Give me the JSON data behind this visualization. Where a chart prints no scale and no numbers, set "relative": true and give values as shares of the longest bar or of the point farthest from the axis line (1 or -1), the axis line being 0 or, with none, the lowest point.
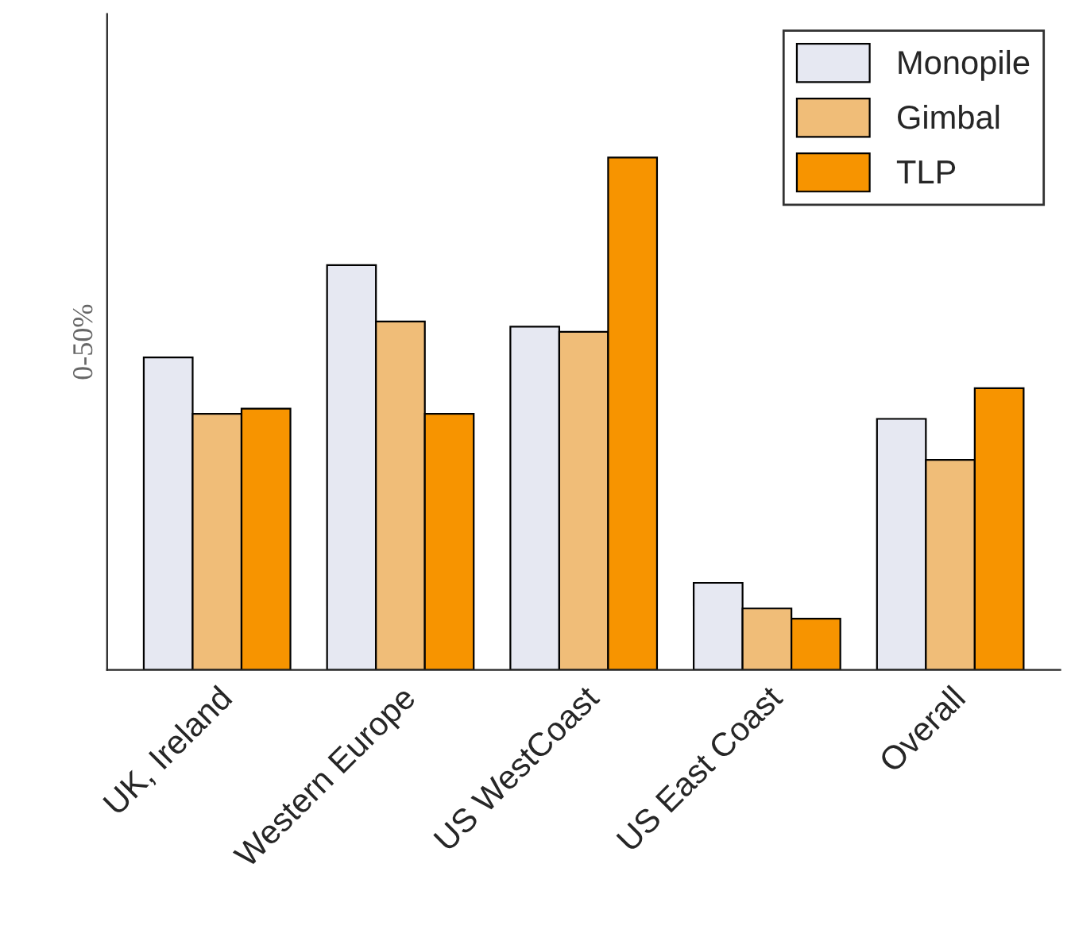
{
  "chart_data": {
    "type": "bar",
    "relative": true,
    "ylabel": "0-50%",
    "categories": [
      "UK, Ireland",
      "Western Europe",
      "US WestCoast",
      "US East Coast",
      "Overall"
    ],
    "series": [
      {
        "name": "Monopile",
        "color": "#e6e8f2",
        "values": [
          0.61,
          0.79,
          0.67,
          0.17,
          0.49
        ]
      },
      {
        "name": "Gimbal",
        "color": "#f0bd78",
        "values": [
          0.5,
          0.68,
          0.66,
          0.12,
          0.41
        ]
      },
      {
        "name": "TLP",
        "color": "#f79400",
        "values": [
          0.51,
          0.5,
          1,
          0.1,
          0.55
        ]
      }
    ],
    "legend": "top right",
    "grid": false
  }
}
